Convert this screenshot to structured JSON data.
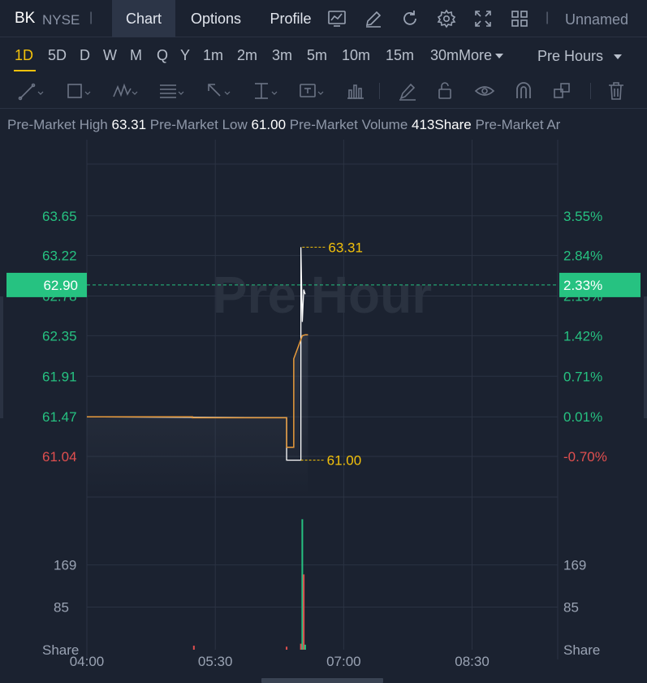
{
  "header": {
    "ticker": "BK",
    "exchange": "NYSE",
    "separator": "|",
    "tabs": [
      {
        "label": "Chart",
        "active": true
      },
      {
        "label": "Options",
        "active": false
      },
      {
        "label": "Profile",
        "active": false
      }
    ],
    "icons": [
      "indicator-chart-icon",
      "draw-pen-icon",
      "refresh-icon",
      "settings-gear-icon",
      "fullscreen-icon",
      "layout-grid-icon"
    ],
    "layout_name": "Unnamed"
  },
  "intervals": {
    "items": [
      "1D",
      "5D",
      "D",
      "W",
      "M",
      "Q",
      "Y",
      "1m",
      "2m",
      "3m",
      "5m",
      "10m",
      "15m",
      "30m"
    ],
    "active": "1D",
    "more_label": "More",
    "session_label": "Pre Hours"
  },
  "drawing_tools": [
    "trend-line-icon",
    "rectangle-icon",
    "pattern-icon",
    "fib-icon",
    "arrow-icon",
    "measure-icon",
    "text-note-icon",
    "chart-pattern-icon",
    "brush-icon",
    "lock-icon",
    "eye-icon",
    "magnet-icon",
    "layers-icon",
    "trash-icon"
  ],
  "info": {
    "high_label": "Pre-Market High",
    "high_value": "63.31",
    "low_label": "Pre-Market Low",
    "low_value": "61.00",
    "volume_label": "Pre-Market Volume",
    "volume_value": "413Share",
    "amount_label": "Pre-Market Ar"
  },
  "colors": {
    "background": "#1b2230",
    "grid": "#2b3343",
    "up": "#26c281",
    "down": "#e04f4f",
    "price_line": "#e89b3c",
    "price_bg": "#ffffff",
    "annotation": "#f3c10b",
    "current_price_bg": "#26c281"
  },
  "chart_data": {
    "type": "line",
    "watermark": "Pre Hour",
    "price_axis": {
      "left_ticks": [
        "63.65",
        "63.22",
        "62.78",
        "62.35",
        "61.91",
        "61.47",
        "61.04"
      ],
      "left_values": [
        63.65,
        63.22,
        62.78,
        62.35,
        61.91,
        61.47,
        61.04
      ],
      "right_ticks": [
        "3.55%",
        "2.84%",
        "2.13%",
        "1.42%",
        "0.71%",
        "0.01%",
        "-0.70%"
      ],
      "ylim": [
        60.6,
        64.3
      ]
    },
    "current_price": {
      "value": 62.9,
      "label": "62.90",
      "percent": "2.33%"
    },
    "high_annotation": {
      "value": 63.31,
      "label": "63.31"
    },
    "low_annotation": {
      "value": 61.0,
      "label": "61.00"
    },
    "time_axis": {
      "ticks": [
        "04:00",
        "05:30",
        "07:00",
        "08:30"
      ],
      "tick_minutes": [
        240,
        330,
        420,
        510
      ],
      "xlim": [
        240,
        570
      ]
    },
    "series": [
      {
        "name": "price",
        "x": [
          240,
          314,
          314,
          380,
          380,
          385,
          385,
          391,
          393,
          395
        ],
        "y": [
          61.47,
          61.47,
          61.46,
          61.46,
          61.14,
          61.14,
          62.1,
          62.35,
          62.36,
          62.36
        ]
      },
      {
        "name": "high-low",
        "x": [
          240,
          380,
          380,
          390,
          390,
          391,
          392,
          393
        ],
        "y": [
          61.47,
          61.46,
          61.0,
          61.0,
          63.31,
          62.5,
          62.85,
          62.8
        ]
      }
    ],
    "volume_axis": {
      "ticks": [
        "169",
        "85"
      ],
      "values": [
        169,
        85
      ],
      "unit": "Share",
      "ylim": [
        0,
        280
      ]
    },
    "volume_bars": [
      {
        "t": 315,
        "v": 8,
        "dir": "down"
      },
      {
        "t": 380,
        "v": 6,
        "dir": "down"
      },
      {
        "t": 390,
        "v": 12,
        "dir": "down"
      },
      {
        "t": 391,
        "v": 260,
        "dir": "up"
      },
      {
        "t": 392,
        "v": 150,
        "dir": "down"
      },
      {
        "t": 393,
        "v": 10,
        "dir": "up"
      }
    ]
  }
}
